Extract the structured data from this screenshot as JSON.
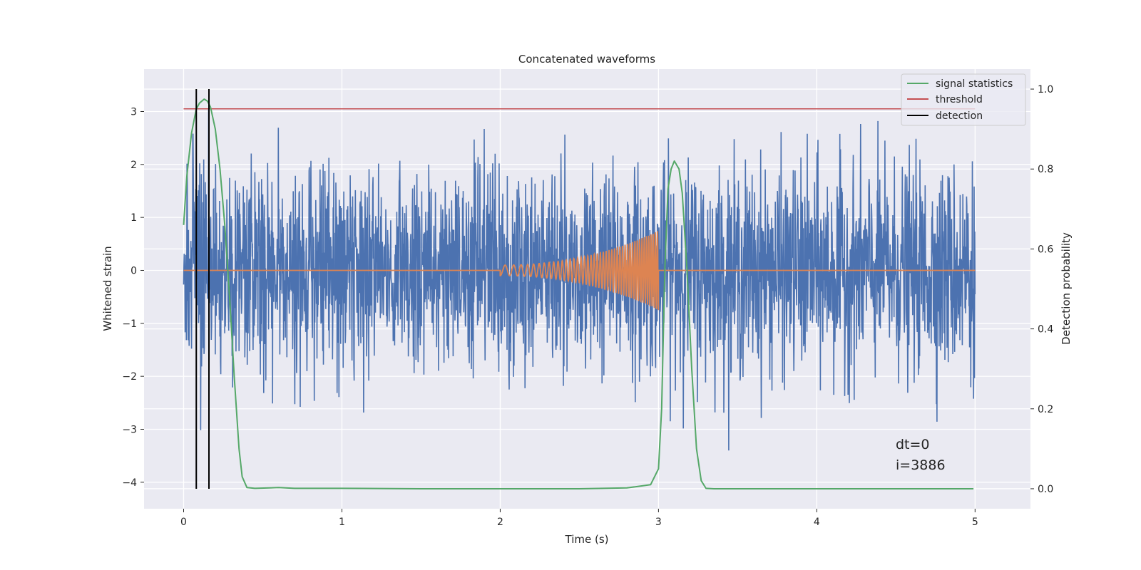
{
  "chart_data": {
    "type": "line",
    "title": "Concatenated waveforms",
    "xlabel": "Time (s)",
    "ylabel": "Whitened strain",
    "y2label": "Detection probability",
    "xlim": [
      -0.25,
      5.35
    ],
    "ylim": [
      -4.5,
      3.8
    ],
    "y2lim": [
      -0.05,
      1.05
    ],
    "xticks": [
      0,
      1,
      2,
      3,
      4,
      5
    ],
    "yticks": [
      -4,
      -3,
      -2,
      -1,
      0,
      1,
      2,
      3
    ],
    "y2ticks": [
      0.0,
      0.2,
      0.4,
      0.6,
      0.8,
      1.0
    ],
    "grid": true,
    "legend_position": "top-right",
    "annotations": [
      "dt=0",
      "i=3886"
    ],
    "colors": {
      "strain": "#4c72b0",
      "template": "#dd8452",
      "signal_statistics": "#55a868",
      "threshold": "#c44e52",
      "detection": "#000000",
      "background": "#eaeaf2",
      "grid": "#ffffff"
    },
    "noise": {
      "x_range": [
        0,
        5
      ],
      "amplitude_range": [
        -3.4,
        3.35
      ]
    },
    "template_chirp": {
      "x_range": [
        2.0,
        3.0
      ],
      "amplitude_start": 0.1,
      "amplitude_end": 0.75,
      "value_elsewhere": 0
    },
    "series": [
      {
        "name": "signal statistics",
        "axis": "right",
        "x": [
          0.0,
          0.02,
          0.05,
          0.08,
          0.1,
          0.13,
          0.15,
          0.17,
          0.2,
          0.23,
          0.26,
          0.29,
          0.32,
          0.35,
          0.37,
          0.4,
          0.45,
          0.6,
          0.7,
          1.0,
          1.5,
          2.0,
          2.5,
          2.8,
          2.95,
          3.0,
          3.02,
          3.04,
          3.06,
          3.08,
          3.1,
          3.13,
          3.15,
          3.18,
          3.21,
          3.24,
          3.27,
          3.3,
          3.35,
          4.0,
          4.99
        ],
        "values": [
          0.66,
          0.78,
          0.89,
          0.95,
          0.965,
          0.975,
          0.97,
          0.955,
          0.9,
          0.8,
          0.66,
          0.48,
          0.28,
          0.1,
          0.03,
          0.003,
          0.001,
          0.003,
          0.001,
          0.001,
          0.0,
          0.0,
          0.0,
          0.002,
          0.01,
          0.05,
          0.2,
          0.55,
          0.75,
          0.8,
          0.82,
          0.8,
          0.74,
          0.55,
          0.3,
          0.1,
          0.02,
          0.001,
          0.0,
          0.0,
          0.0
        ]
      },
      {
        "name": "threshold",
        "axis": "left",
        "x": [
          0.0,
          5.0
        ],
        "values": [
          3.05,
          3.05
        ]
      },
      {
        "name": "detection",
        "axis": "right",
        "x": [
          0.08,
          0.16
        ],
        "ymin": 0.0,
        "ymax": 1.0
      }
    ]
  }
}
